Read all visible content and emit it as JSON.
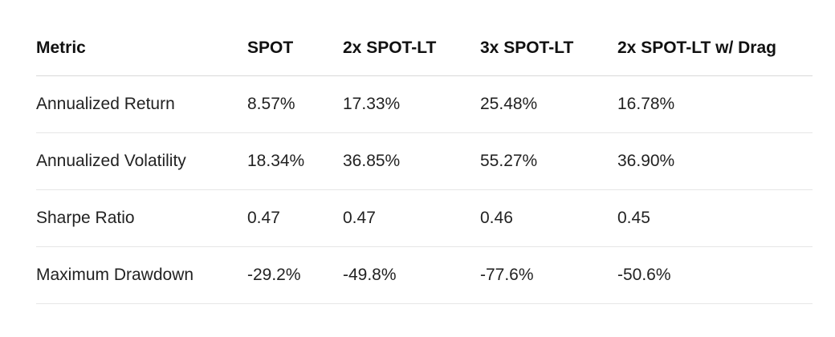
{
  "table": {
    "headers": [
      "Metric",
      "SPOT",
      "2x SPOT-LT",
      "3x SPOT-LT",
      "2x SPOT-LT w/ Drag"
    ],
    "rows": [
      [
        "Annualized Return",
        "8.57%",
        "17.33%",
        "25.48%",
        "16.78%"
      ],
      [
        "Annualized Volatility",
        "18.34%",
        "36.85%",
        "55.27%",
        "36.90%"
      ],
      [
        "Sharpe Ratio",
        "0.47",
        "0.47",
        "0.46",
        "0.45"
      ],
      [
        "Maximum Drawdown",
        "-29.2%",
        "-49.8%",
        "-77.6%",
        "-50.6%"
      ]
    ]
  }
}
